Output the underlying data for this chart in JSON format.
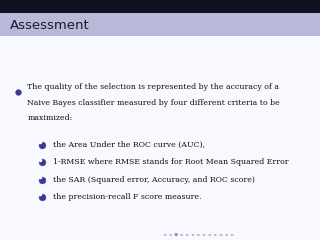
{
  "title": "Assessment",
  "title_bg_color": "#b8b8d8",
  "title_text_color": "#1a1a2e",
  "bg_color": "#f8f8ff",
  "main_bullet_color": "#3a3a8c",
  "sub_bullet_color": "#3a3a8c",
  "main_text_line1": "The quality of the selection is represented by the accuracy of a",
  "main_text_line2": "Naive Bayes classifier measured by four different criteria to be",
  "main_text_line3": "maximized:",
  "sub_items": [
    "the Area Under the ROC curve (AUC),",
    "1-RMSE where RMSE stands for Root Mean Squared Error",
    "the SAR (Squared error, Accuracy, and ROC score)",
    "the precision-recall F score measure."
  ],
  "footer_color": "#9999bb",
  "top_bar_color": "#111122",
  "top_bar_height": 0.055,
  "title_bar_height": 0.095,
  "title_fontsize": 9.5,
  "main_fontsize": 5.6,
  "sub_fontsize": 5.6
}
